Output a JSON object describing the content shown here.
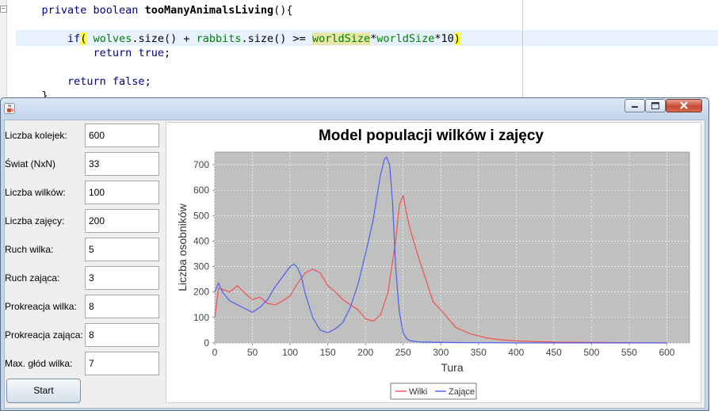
{
  "editor": {
    "lines": [
      {
        "indent": "    ",
        "tokens": [
          {
            "t": "private boolean ",
            "c": "kw"
          },
          {
            "t": "tooManyAnimalsLiving",
            "c": "mth"
          },
          {
            "t": "(){",
            "c": ""
          }
        ]
      },
      {
        "indent": "",
        "tokens": []
      },
      {
        "indent": "        ",
        "tokens": [
          {
            "t": "if",
            "c": "kw"
          },
          {
            "t": "(",
            "c": "brc"
          },
          {
            "t": " wolves",
            "c": "grn"
          },
          {
            "t": ".size() + ",
            "c": ""
          },
          {
            "t": "rabbits",
            "c": "grn"
          },
          {
            "t": ".size() >= ",
            "c": ""
          },
          {
            "t": "worldSize",
            "c": "fld"
          },
          {
            "t": "*",
            "c": ""
          },
          {
            "t": "worldSize",
            "c": "grn"
          },
          {
            "t": "*10",
            "c": ""
          },
          {
            "t": ")",
            "c": "brc"
          }
        ]
      },
      {
        "indent": "            ",
        "tokens": [
          {
            "t": "return true",
            "c": "kw"
          },
          {
            "t": ";",
            "c": ""
          }
        ]
      },
      {
        "indent": "",
        "tokens": []
      },
      {
        "indent": "        ",
        "tokens": [
          {
            "t": "return false",
            "c": "kw"
          },
          {
            "t": ";",
            "c": ""
          }
        ]
      },
      {
        "indent": "    ",
        "tokens": [
          {
            "t": "}",
            "c": ""
          }
        ]
      }
    ]
  },
  "window": {
    "title": "",
    "icon": "java-cup-icon",
    "controls": [
      "minimize-icon",
      "maximize-icon",
      "close-icon"
    ]
  },
  "form": {
    "fields": [
      {
        "label": "Liczba kolejek:",
        "value": "600"
      },
      {
        "label": "Świat (NxN)",
        "value": "33"
      },
      {
        "label": "Liczba wilków:",
        "value": "100"
      },
      {
        "label": "Liczba zajęcy:",
        "value": "200"
      },
      {
        "label": "Ruch wilka:",
        "value": "5"
      },
      {
        "label": "Ruch zająca:",
        "value": "3"
      },
      {
        "label": "Prokreacja wilka:",
        "value": "8"
      },
      {
        "label": "Prokreacja zająca:",
        "value": "8"
      },
      {
        "label": "Max. głód wilka:",
        "value": "7"
      }
    ],
    "start_label": "Start"
  },
  "colors": {
    "wolves": "#f05050",
    "rabbits": "#4f5ff0",
    "plot_bg": "#c0c0c0",
    "grid": "#ffffff"
  },
  "chart_data": {
    "type": "line",
    "title": "Model populacji wilków i zajęcy",
    "xlabel": "Tura",
    "ylabel": "Liczba osobników",
    "xlim": [
      0,
      630
    ],
    "ylim": [
      0,
      750
    ],
    "xticks": [
      0,
      50,
      100,
      150,
      200,
      250,
      300,
      350,
      400,
      450,
      500,
      550,
      600
    ],
    "yticks": [
      0,
      100,
      200,
      300,
      400,
      500,
      600,
      700
    ],
    "grid": true,
    "legend": "bottom-center",
    "series": [
      {
        "name": "Wilki",
        "color": "#f05050",
        "x": [
          0,
          5,
          10,
          20,
          30,
          40,
          50,
          60,
          70,
          80,
          90,
          100,
          110,
          120,
          130,
          140,
          150,
          160,
          170,
          180,
          190,
          200,
          210,
          220,
          230,
          240,
          245,
          250,
          255,
          260,
          270,
          280,
          290,
          300,
          310,
          320,
          340,
          360,
          380,
          400,
          420,
          450,
          500,
          550,
          600
        ],
        "y": [
          100,
          215,
          210,
          200,
          225,
          195,
          170,
          180,
          155,
          150,
          165,
          185,
          235,
          275,
          290,
          275,
          225,
          200,
          170,
          150,
          130,
          95,
          85,
          110,
          200,
          400,
          540,
          580,
          500,
          440,
          340,
          250,
          160,
          130,
          95,
          60,
          35,
          20,
          12,
          8,
          6,
          3,
          2,
          1,
          0
        ]
      },
      {
        "name": "Zające",
        "color": "#4f5ff0",
        "x": [
          0,
          5,
          10,
          20,
          30,
          40,
          50,
          60,
          70,
          80,
          90,
          100,
          105,
          110,
          115,
          120,
          130,
          140,
          150,
          160,
          170,
          180,
          190,
          200,
          210,
          215,
          220,
          225,
          228,
          232,
          236,
          240,
          245,
          250,
          255,
          260,
          270,
          280,
          300,
          350,
          400,
          450,
          500,
          550,
          600
        ],
        "y": [
          200,
          235,
          200,
          165,
          150,
          135,
          120,
          140,
          170,
          220,
          260,
          300,
          310,
          295,
          260,
          195,
          100,
          50,
          40,
          55,
          80,
          140,
          230,
          350,
          480,
          570,
          660,
          720,
          730,
          700,
          550,
          300,
          120,
          40,
          15,
          8,
          4,
          3,
          2,
          1,
          0,
          0,
          0,
          0,
          0
        ]
      }
    ]
  }
}
